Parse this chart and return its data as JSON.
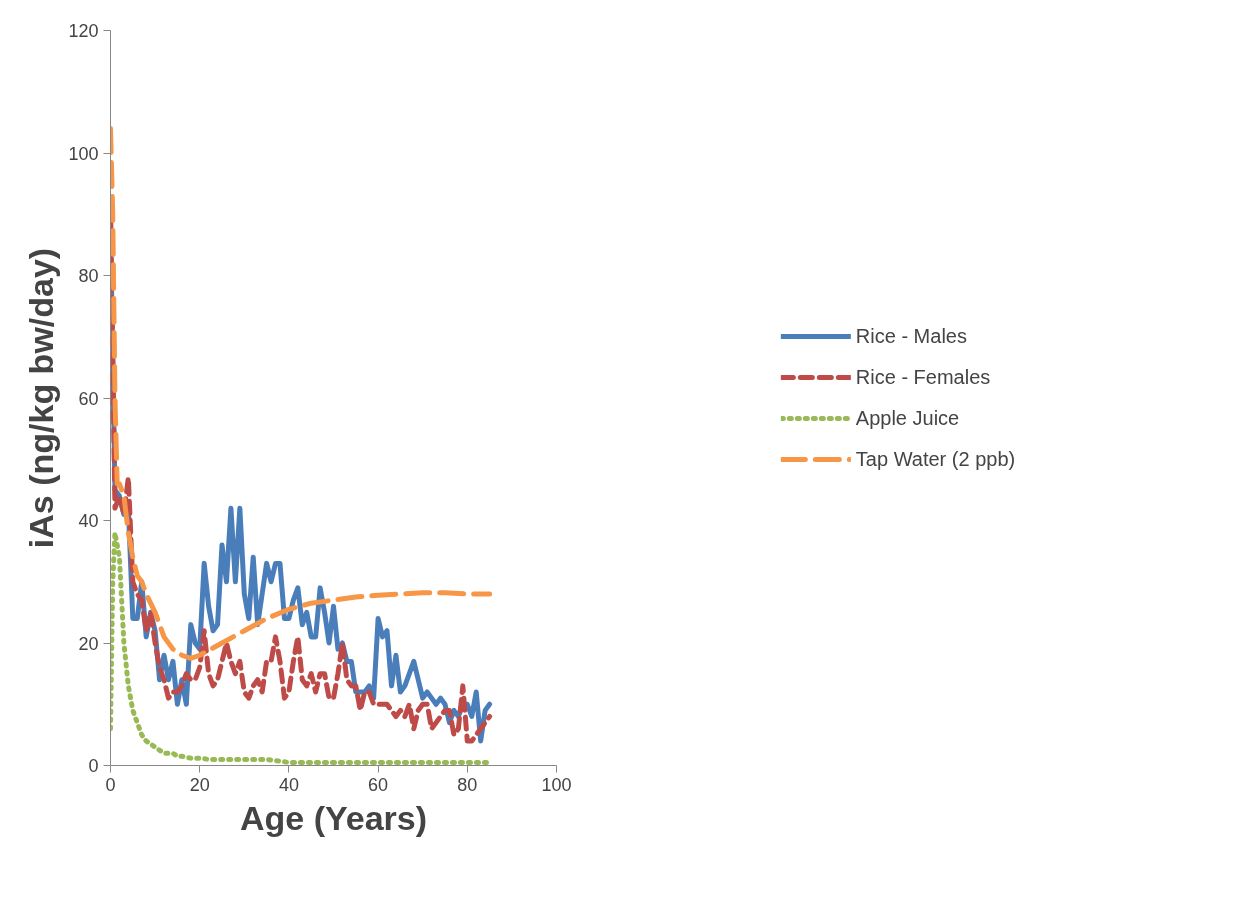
{
  "chart_data": {
    "type": "line",
    "xlabel": "Age (Years)",
    "ylabel": "iAs (ng/kg bw/day)",
    "xlim": [
      0,
      100
    ],
    "xticks": [
      0,
      20,
      40,
      60,
      80,
      100
    ],
    "ylim": [
      0,
      120
    ],
    "yticks": [
      0,
      20,
      40,
      60,
      80,
      100,
      120
    ],
    "grid": false,
    "legend": "right",
    "marker": "none",
    "series": [
      {
        "name": "Rice - Males",
        "color": "#4a7ebb",
        "line_style": "solid",
        "x": [
          0,
          1,
          2,
          3,
          4,
          5,
          6,
          7,
          8,
          9,
          10,
          11,
          12,
          13,
          14,
          15,
          16,
          17,
          18,
          19,
          20,
          21,
          22,
          23,
          24,
          25,
          26,
          27,
          28,
          29,
          30,
          31,
          32,
          33,
          34,
          35,
          36,
          37,
          38,
          39,
          40,
          41,
          42,
          43,
          44,
          45,
          46,
          47,
          48,
          49,
          50,
          51,
          52,
          53,
          54,
          55,
          56,
          57,
          58,
          59,
          60,
          61,
          62,
          63,
          64,
          65,
          66,
          67,
          68,
          69,
          70,
          71,
          72,
          73,
          74,
          75,
          76,
          77,
          78,
          79,
          80,
          81,
          82,
          83,
          84,
          85
        ],
        "values": [
          88,
          45,
          44,
          41,
          42,
          24,
          24,
          30,
          21,
          25,
          22,
          14,
          18,
          14,
          17,
          10,
          14,
          10,
          23,
          20,
          19,
          33,
          26,
          22,
          23,
          36,
          30,
          42,
          30,
          42,
          28,
          24,
          34,
          23,
          28,
          33,
          30,
          33,
          33,
          24,
          24,
          27,
          29,
          23,
          25,
          21,
          21,
          29,
          25,
          20,
          26,
          19,
          20,
          17,
          17,
          12,
          12,
          12,
          13,
          11,
          24,
          21,
          22,
          13,
          18,
          12,
          13,
          15,
          17,
          14,
          11,
          12,
          11,
          10,
          11,
          10,
          7,
          9,
          8,
          10,
          10,
          8,
          12,
          4,
          9,
          10
        ]
      },
      {
        "name": "Rice - Females",
        "color": "#be4b48",
        "line_style": "dashed",
        "x": [
          0,
          1,
          2,
          3,
          4,
          5,
          6,
          7,
          8,
          9,
          10,
          11,
          12,
          13,
          14,
          15,
          16,
          17,
          18,
          19,
          20,
          21,
          22,
          23,
          24,
          25,
          26,
          27,
          28,
          29,
          30,
          31,
          32,
          33,
          34,
          35,
          36,
          37,
          38,
          39,
          40,
          41,
          42,
          43,
          44,
          45,
          46,
          47,
          48,
          49,
          50,
          51,
          52,
          53,
          54,
          55,
          56,
          57,
          58,
          59,
          60,
          61,
          62,
          63,
          64,
          65,
          66,
          67,
          68,
          69,
          70,
          71,
          72,
          73,
          74,
          75,
          76,
          77,
          78,
          79,
          80,
          81,
          82,
          83,
          84,
          85
        ],
        "values": [
          92,
          42,
          44,
          41,
          47,
          30,
          28,
          27,
          22,
          25,
          20,
          16,
          14,
          11,
          12,
          12,
          13,
          15,
          14,
          14,
          16,
          22,
          15,
          13,
          14,
          17,
          20,
          17,
          15,
          17,
          12,
          11,
          13,
          14,
          12,
          17,
          17,
          21,
          17,
          11,
          12,
          17,
          21,
          14,
          13,
          15,
          12,
          15,
          15,
          11,
          11,
          15,
          20,
          14,
          13,
          13,
          9,
          12,
          12,
          10,
          10,
          10,
          10,
          9,
          8,
          9,
          8,
          10,
          6,
          9,
          10,
          10,
          6,
          7,
          8,
          9,
          9,
          5,
          6,
          13,
          4,
          4,
          5,
          6,
          7,
          8
        ]
      },
      {
        "name": "Apple Juice",
        "color": "#98b954",
        "line_style": "dotted",
        "x": [
          0,
          0.5,
          1,
          2,
          3,
          4,
          5,
          6,
          7,
          8,
          9,
          10,
          11,
          12,
          13,
          14,
          15,
          16,
          18,
          20,
          22,
          25,
          30,
          35,
          40,
          45,
          50,
          55,
          60,
          65,
          70,
          75,
          80,
          85
        ],
        "values": [
          6,
          30,
          38,
          34,
          20,
          13,
          9,
          7,
          5,
          4,
          3.5,
          3,
          2.5,
          2,
          2,
          2,
          1.5,
          1.5,
          1.2,
          1.2,
          1,
          1,
          1,
          1,
          0.5,
          0.5,
          0.5,
          0.5,
          0.5,
          0.5,
          0.5,
          0.5,
          0.5,
          0.5
        ]
      },
      {
        "name": "Tap Water (2 ppb)",
        "color": "#f79646",
        "line_style": "long_dash",
        "x": [
          0,
          0.5,
          1,
          1.5,
          2,
          3,
          4,
          5,
          6,
          7,
          8,
          10,
          12,
          14,
          16,
          18,
          20,
          25,
          30,
          35,
          40,
          45,
          50,
          55,
          60,
          65,
          70,
          75,
          80,
          85
        ],
        "values": [
          104,
          90,
          60,
          46,
          46,
          44,
          38,
          34,
          31,
          30,
          28,
          25,
          21,
          19,
          18,
          17.5,
          18,
          20,
          22,
          24,
          25.5,
          26.5,
          27,
          27.5,
          27.8,
          28,
          28.2,
          28.2,
          28,
          28
        ]
      }
    ]
  }
}
